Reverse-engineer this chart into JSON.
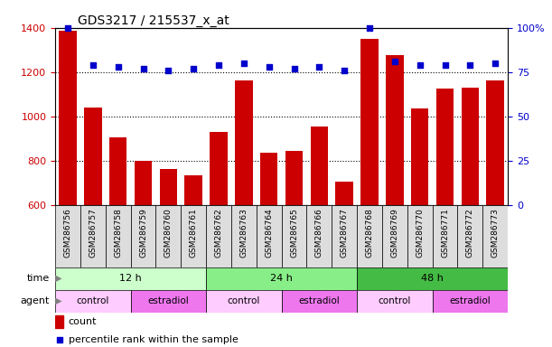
{
  "title": "GDS3217 / 215537_x_at",
  "samples": [
    "GSM286756",
    "GSM286757",
    "GSM286758",
    "GSM286759",
    "GSM286760",
    "GSM286761",
    "GSM286762",
    "GSM286763",
    "GSM286764",
    "GSM286765",
    "GSM286766",
    "GSM286767",
    "GSM286768",
    "GSM286769",
    "GSM286770",
    "GSM286771",
    "GSM286772",
    "GSM286773"
  ],
  "counts": [
    1385,
    1040,
    905,
    800,
    760,
    735,
    930,
    1160,
    835,
    845,
    955,
    705,
    1350,
    1275,
    1035,
    1125,
    1130,
    1160
  ],
  "percentiles": [
    100,
    79,
    78,
    77,
    76,
    77,
    79,
    80,
    78,
    77,
    78,
    76,
    100,
    81,
    79,
    79,
    79,
    80
  ],
  "ylim_left": [
    600,
    1400
  ],
  "ylim_right": [
    0,
    100
  ],
  "yticks_left": [
    600,
    800,
    1000,
    1200,
    1400
  ],
  "yticks_right": [
    0,
    25,
    50,
    75,
    100
  ],
  "bar_color": "#CC0000",
  "dot_color": "#0000CC",
  "time_groups": [
    {
      "label": "12 h",
      "start": 0,
      "end": 6,
      "color": "#CCFFCC"
    },
    {
      "label": "24 h",
      "start": 6,
      "end": 12,
      "color": "#88EE88"
    },
    {
      "label": "48 h",
      "start": 12,
      "end": 18,
      "color": "#44BB44"
    }
  ],
  "agent_groups": [
    {
      "label": "control",
      "start": 0,
      "end": 3,
      "color": "#FFCCFF"
    },
    {
      "label": "estradiol",
      "start": 3,
      "end": 6,
      "color": "#EE77EE"
    },
    {
      "label": "control",
      "start": 6,
      "end": 9,
      "color": "#FFCCFF"
    },
    {
      "label": "estradiol",
      "start": 9,
      "end": 12,
      "color": "#EE77EE"
    },
    {
      "label": "control",
      "start": 12,
      "end": 15,
      "color": "#FFCCFF"
    },
    {
      "label": "estradiol",
      "start": 15,
      "end": 18,
      "color": "#EE77EE"
    }
  ],
  "legend_count_label": "count",
  "legend_pct_label": "percentile rank within the sample",
  "time_label": "time",
  "agent_label": "agent"
}
